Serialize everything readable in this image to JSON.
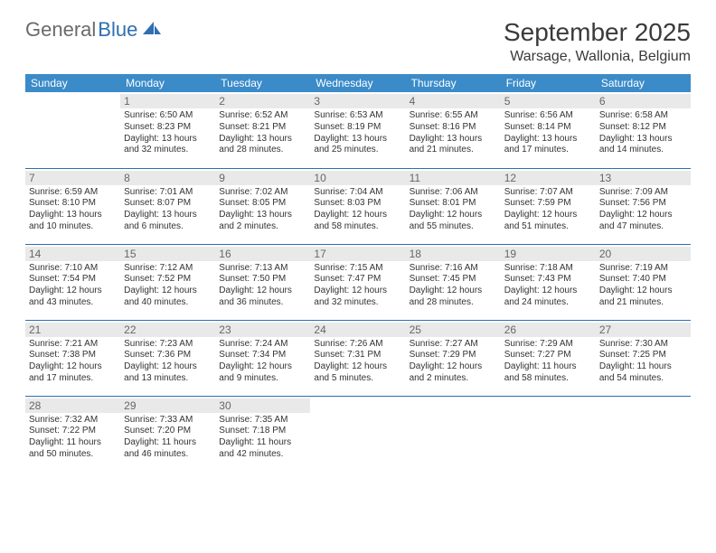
{
  "logo": {
    "part1": "General",
    "part2": "Blue"
  },
  "header": {
    "month_title": "September 2025",
    "location": "Warsage, Wallonia, Belgium"
  },
  "colors": {
    "header_bg": "#3b8bc9",
    "header_text": "#ffffff",
    "daynum_bg": "#e9e9e9",
    "daynum_text": "#676767",
    "row_border": "#2e6fb0",
    "body_text": "#333333",
    "logo_gray": "#6a6a6a",
    "logo_blue": "#2e6fb0",
    "page_bg": "#ffffff"
  },
  "weekdays": [
    "Sunday",
    "Monday",
    "Tuesday",
    "Wednesday",
    "Thursday",
    "Friday",
    "Saturday"
  ],
  "cells": [
    {
      "n": "",
      "sr": "",
      "ss": "",
      "dl": ""
    },
    {
      "n": "1",
      "sr": "Sunrise: 6:50 AM",
      "ss": "Sunset: 8:23 PM",
      "dl": "Daylight: 13 hours and 32 minutes."
    },
    {
      "n": "2",
      "sr": "Sunrise: 6:52 AM",
      "ss": "Sunset: 8:21 PM",
      "dl": "Daylight: 13 hours and 28 minutes."
    },
    {
      "n": "3",
      "sr": "Sunrise: 6:53 AM",
      "ss": "Sunset: 8:19 PM",
      "dl": "Daylight: 13 hours and 25 minutes."
    },
    {
      "n": "4",
      "sr": "Sunrise: 6:55 AM",
      "ss": "Sunset: 8:16 PM",
      "dl": "Daylight: 13 hours and 21 minutes."
    },
    {
      "n": "5",
      "sr": "Sunrise: 6:56 AM",
      "ss": "Sunset: 8:14 PM",
      "dl": "Daylight: 13 hours and 17 minutes."
    },
    {
      "n": "6",
      "sr": "Sunrise: 6:58 AM",
      "ss": "Sunset: 8:12 PM",
      "dl": "Daylight: 13 hours and 14 minutes."
    },
    {
      "n": "7",
      "sr": "Sunrise: 6:59 AM",
      "ss": "Sunset: 8:10 PM",
      "dl": "Daylight: 13 hours and 10 minutes."
    },
    {
      "n": "8",
      "sr": "Sunrise: 7:01 AM",
      "ss": "Sunset: 8:07 PM",
      "dl": "Daylight: 13 hours and 6 minutes."
    },
    {
      "n": "9",
      "sr": "Sunrise: 7:02 AM",
      "ss": "Sunset: 8:05 PM",
      "dl": "Daylight: 13 hours and 2 minutes."
    },
    {
      "n": "10",
      "sr": "Sunrise: 7:04 AM",
      "ss": "Sunset: 8:03 PM",
      "dl": "Daylight: 12 hours and 58 minutes."
    },
    {
      "n": "11",
      "sr": "Sunrise: 7:06 AM",
      "ss": "Sunset: 8:01 PM",
      "dl": "Daylight: 12 hours and 55 minutes."
    },
    {
      "n": "12",
      "sr": "Sunrise: 7:07 AM",
      "ss": "Sunset: 7:59 PM",
      "dl": "Daylight: 12 hours and 51 minutes."
    },
    {
      "n": "13",
      "sr": "Sunrise: 7:09 AM",
      "ss": "Sunset: 7:56 PM",
      "dl": "Daylight: 12 hours and 47 minutes."
    },
    {
      "n": "14",
      "sr": "Sunrise: 7:10 AM",
      "ss": "Sunset: 7:54 PM",
      "dl": "Daylight: 12 hours and 43 minutes."
    },
    {
      "n": "15",
      "sr": "Sunrise: 7:12 AM",
      "ss": "Sunset: 7:52 PM",
      "dl": "Daylight: 12 hours and 40 minutes."
    },
    {
      "n": "16",
      "sr": "Sunrise: 7:13 AM",
      "ss": "Sunset: 7:50 PM",
      "dl": "Daylight: 12 hours and 36 minutes."
    },
    {
      "n": "17",
      "sr": "Sunrise: 7:15 AM",
      "ss": "Sunset: 7:47 PM",
      "dl": "Daylight: 12 hours and 32 minutes."
    },
    {
      "n": "18",
      "sr": "Sunrise: 7:16 AM",
      "ss": "Sunset: 7:45 PM",
      "dl": "Daylight: 12 hours and 28 minutes."
    },
    {
      "n": "19",
      "sr": "Sunrise: 7:18 AM",
      "ss": "Sunset: 7:43 PM",
      "dl": "Daylight: 12 hours and 24 minutes."
    },
    {
      "n": "20",
      "sr": "Sunrise: 7:19 AM",
      "ss": "Sunset: 7:40 PM",
      "dl": "Daylight: 12 hours and 21 minutes."
    },
    {
      "n": "21",
      "sr": "Sunrise: 7:21 AM",
      "ss": "Sunset: 7:38 PM",
      "dl": "Daylight: 12 hours and 17 minutes."
    },
    {
      "n": "22",
      "sr": "Sunrise: 7:23 AM",
      "ss": "Sunset: 7:36 PM",
      "dl": "Daylight: 12 hours and 13 minutes."
    },
    {
      "n": "23",
      "sr": "Sunrise: 7:24 AM",
      "ss": "Sunset: 7:34 PM",
      "dl": "Daylight: 12 hours and 9 minutes."
    },
    {
      "n": "24",
      "sr": "Sunrise: 7:26 AM",
      "ss": "Sunset: 7:31 PM",
      "dl": "Daylight: 12 hours and 5 minutes."
    },
    {
      "n": "25",
      "sr": "Sunrise: 7:27 AM",
      "ss": "Sunset: 7:29 PM",
      "dl": "Daylight: 12 hours and 2 minutes."
    },
    {
      "n": "26",
      "sr": "Sunrise: 7:29 AM",
      "ss": "Sunset: 7:27 PM",
      "dl": "Daylight: 11 hours and 58 minutes."
    },
    {
      "n": "27",
      "sr": "Sunrise: 7:30 AM",
      "ss": "Sunset: 7:25 PM",
      "dl": "Daylight: 11 hours and 54 minutes."
    },
    {
      "n": "28",
      "sr": "Sunrise: 7:32 AM",
      "ss": "Sunset: 7:22 PM",
      "dl": "Daylight: 11 hours and 50 minutes."
    },
    {
      "n": "29",
      "sr": "Sunrise: 7:33 AM",
      "ss": "Sunset: 7:20 PM",
      "dl": "Daylight: 11 hours and 46 minutes."
    },
    {
      "n": "30",
      "sr": "Sunrise: 7:35 AM",
      "ss": "Sunset: 7:18 PM",
      "dl": "Daylight: 11 hours and 42 minutes."
    },
    {
      "n": "",
      "sr": "",
      "ss": "",
      "dl": ""
    },
    {
      "n": "",
      "sr": "",
      "ss": "",
      "dl": ""
    },
    {
      "n": "",
      "sr": "",
      "ss": "",
      "dl": ""
    },
    {
      "n": "",
      "sr": "",
      "ss": "",
      "dl": ""
    }
  ]
}
